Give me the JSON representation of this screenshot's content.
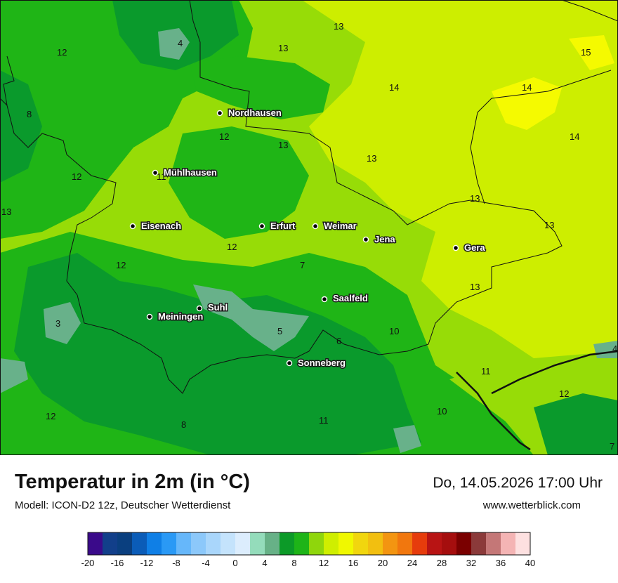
{
  "header": {
    "title": "Temperatur in 2m (in °C)",
    "model": "Modell: ICON-D2 12z, Deutscher Wetterdienst",
    "datetime": "Do, 14.05.2026 17:00 Uhr",
    "website": "www.wetterblick.com"
  },
  "cities": [
    {
      "name": "Nordhausen"
    },
    {
      "name": "Mühlhausen"
    },
    {
      "name": "Eisenach"
    },
    {
      "name": "Erfurt"
    },
    {
      "name": "Weimar"
    },
    {
      "name": "Jena"
    },
    {
      "name": "Gera"
    },
    {
      "name": "Suhl"
    },
    {
      "name": "Meiningen"
    },
    {
      "name": "Saalfeld"
    },
    {
      "name": "Sonneberg"
    }
  ],
  "temperature_labels": [
    "13",
    "4",
    "12",
    "13",
    "15",
    "14",
    "14",
    "8",
    "12",
    "13",
    "14",
    "11",
    "12",
    "13",
    "13",
    "13",
    "13",
    "12",
    "12",
    "7",
    "13",
    "3",
    "5",
    "6",
    "10",
    "11",
    "12",
    "12",
    "8",
    "11",
    "10",
    "7",
    "4"
  ],
  "legend": {
    "ticks": [
      "-20",
      "-16",
      "-12",
      "-8",
      "-4",
      "0",
      "4",
      "8",
      "12",
      "16",
      "20",
      "24",
      "28",
      "32",
      "36",
      "40"
    ],
    "colors": [
      "#3a0a8a",
      "#123f8a",
      "#0a3f7f",
      "#0b5cb8",
      "#0f7fe6",
      "#2a99f5",
      "#66b7fa",
      "#8cc8fa",
      "#a9d6fb",
      "#c4e3fc",
      "#dcedfd",
      "#94dcbb",
      "#67b187",
      "#0c9a28",
      "#1eb418",
      "#8fd60c",
      "#cfee00",
      "#f0f800",
      "#f1d60e",
      "#f2bf10",
      "#f39511",
      "#f1770e",
      "#e63c0c",
      "#b81414",
      "#a50e0e",
      "#7a0000",
      "#8b3a3a",
      "#c47777",
      "#f4b4b4",
      "#fde0e0"
    ]
  },
  "map_colors": {
    "very_warm": "#f5fa00",
    "warm_14": "#cdee00",
    "warm_13": "#97dc07",
    "mild_12": "#1fb516",
    "mild_10": "#0a9a2c",
    "cool_5": "#68b18a",
    "boundary": "#111111"
  }
}
